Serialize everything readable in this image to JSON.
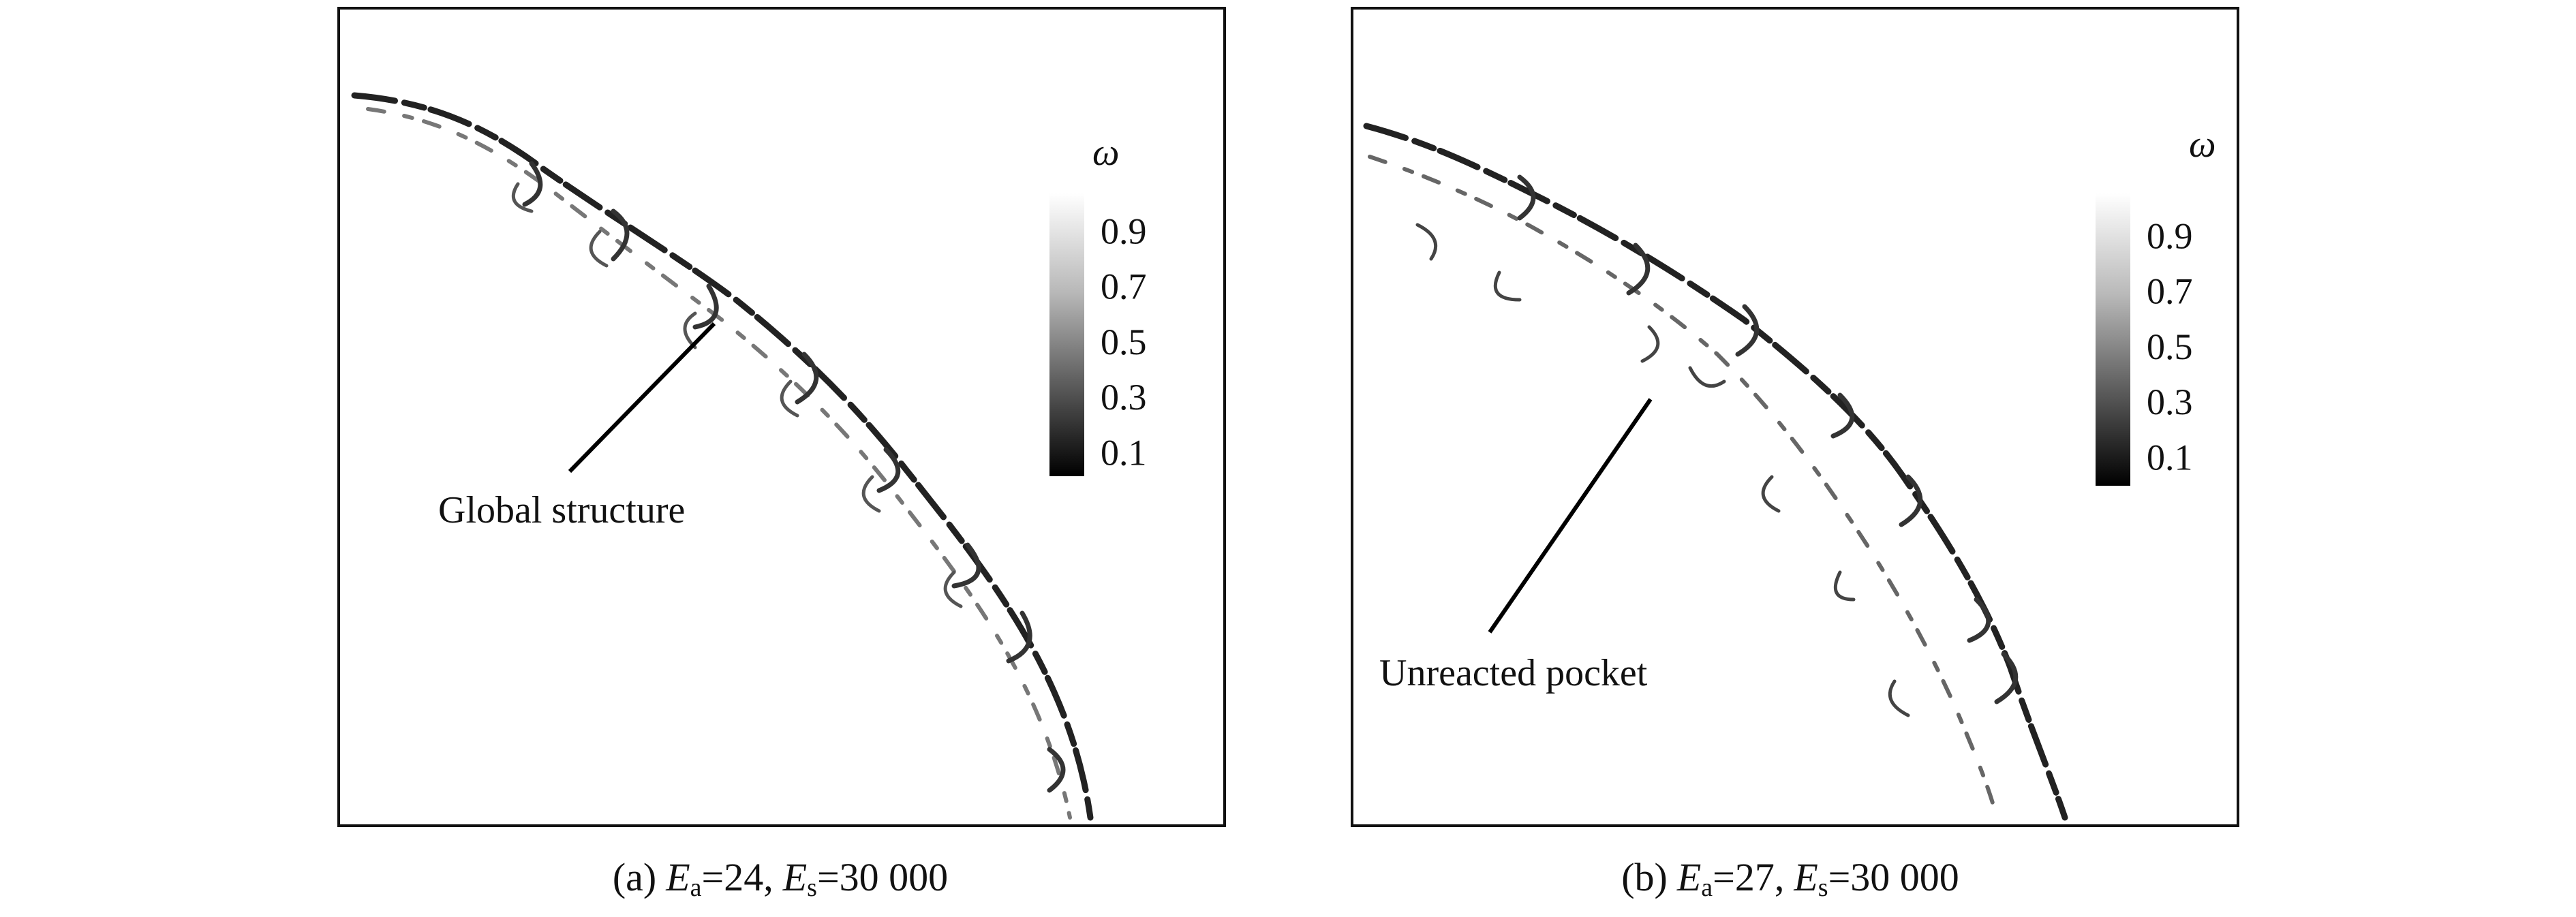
{
  "panels": [
    {
      "annotation": "Global structure",
      "colorbar": {
        "label": "ω",
        "ticks": [
          0.9,
          0.7,
          0.5,
          0.3,
          0.1
        ]
      },
      "caption": {
        "label": "(a)",
        "symbol1": "E",
        "sub1": "a",
        "value1": "=24,",
        "symbol2": "E",
        "sub2": "s",
        "value2": "=30 000"
      }
    },
    {
      "annotation": "Unreacted pocket",
      "colorbar": {
        "label": "ω",
        "ticks": [
          0.9,
          0.7,
          0.5,
          0.3,
          0.1
        ]
      },
      "caption": {
        "label": "(b)",
        "symbol1": "E",
        "sub1": "a",
        "value1": "=27,",
        "symbol2": "E",
        "sub2": "s",
        "value2": "=30 000"
      }
    }
  ]
}
